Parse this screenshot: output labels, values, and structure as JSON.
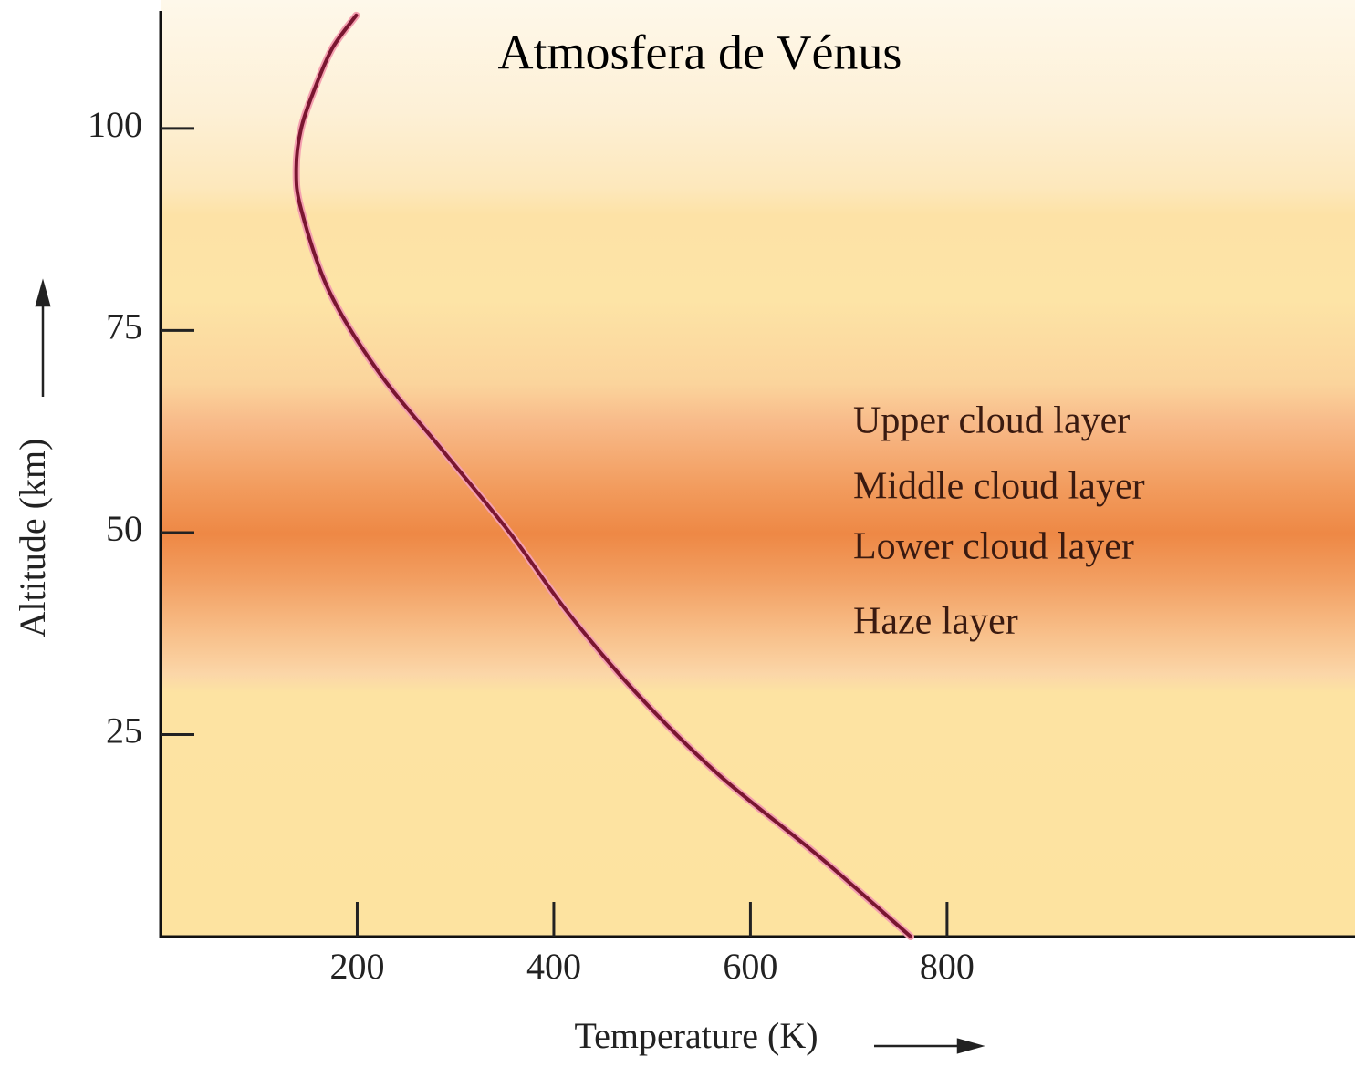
{
  "chart_data": {
    "type": "line",
    "title": "Atmosfera de Vénus",
    "x_label": "Temperature (K)",
    "y_label": "Altitude (km)",
    "x": [
      763,
      669,
      568,
      485,
      415,
      355,
      288,
      221,
      171,
      143,
      138,
      143,
      157,
      175,
      199
    ],
    "values": [
      0,
      10,
      20,
      30,
      40,
      50,
      60,
      70,
      80,
      90,
      95,
      100,
      105,
      110,
      114
    ],
    "color": "#7a1630",
    "xlim": [
      0,
      1215
    ],
    "ylim": [
      0,
      115
    ],
    "xticks": [
      200,
      400,
      600,
      800
    ],
    "yticks": [
      25,
      50,
      75,
      100
    ],
    "annotations": [
      "Upper cloud layer",
      "Middle cloud layer",
      "Lower cloud layer",
      "Haze layer"
    ]
  }
}
